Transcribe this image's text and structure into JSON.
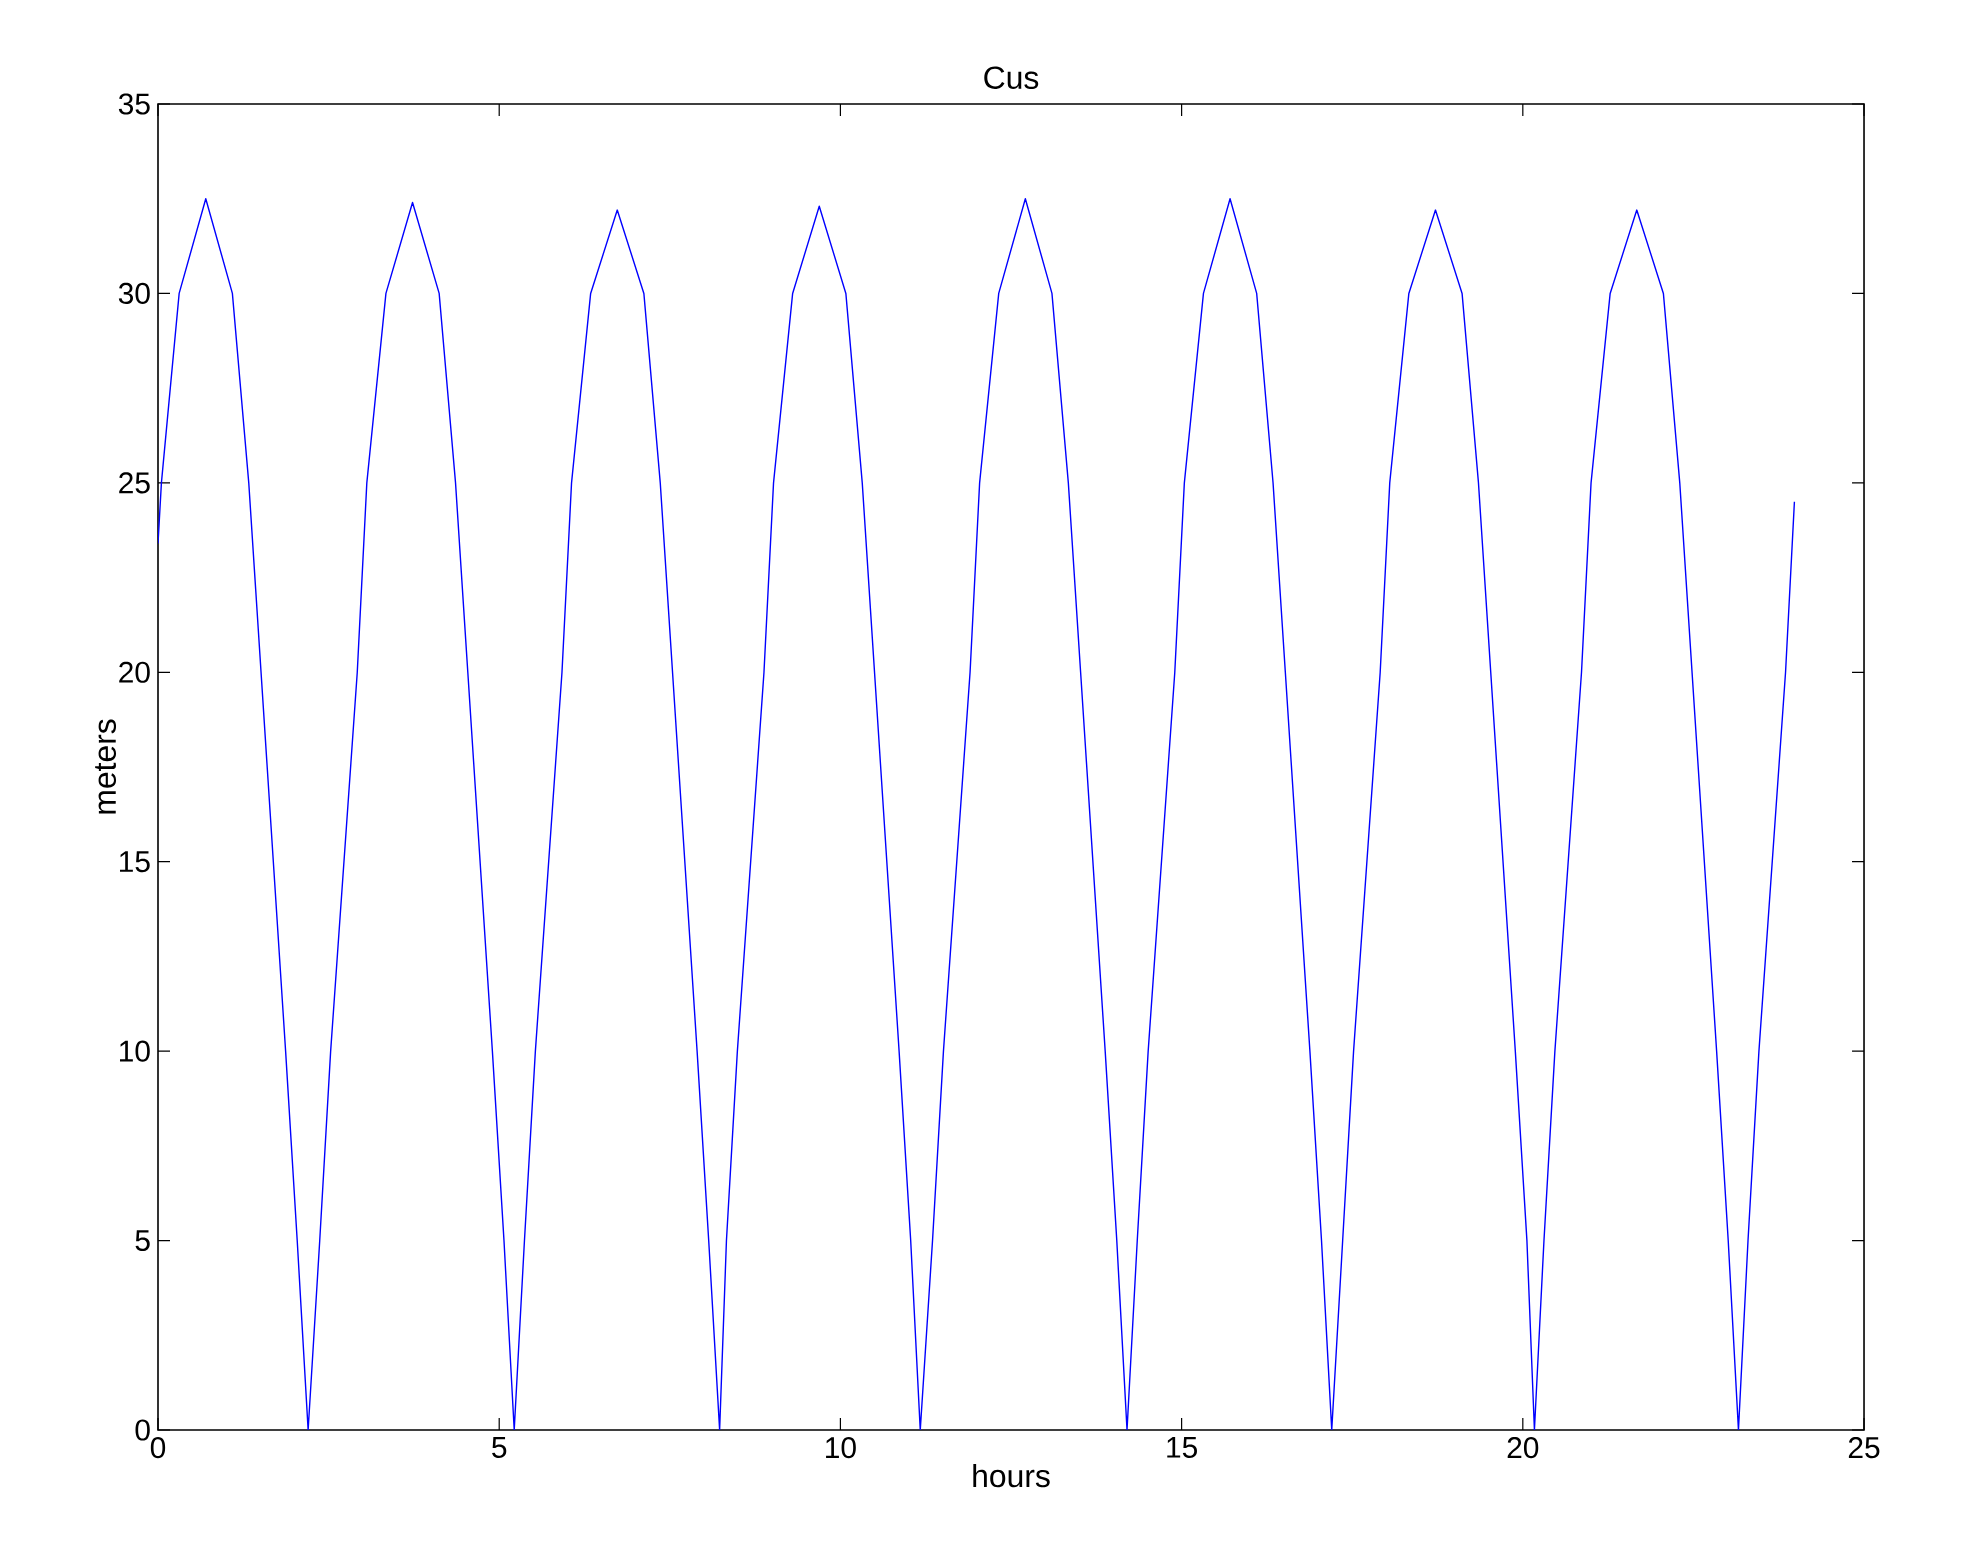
{
  "chart_data": {
    "type": "line",
    "title": "Cus",
    "xlabel": "hours",
    "ylabel": "meters",
    "xlim": [
      0,
      25
    ],
    "ylim": [
      0,
      35
    ],
    "xticks": [
      0,
      5,
      10,
      15,
      20,
      25
    ],
    "yticks": [
      0,
      5,
      10,
      15,
      20,
      25,
      30,
      35
    ],
    "marker": "none",
    "line_style": "solid",
    "series": [
      {
        "color": "#0000ff",
        "x": [
          0,
          0.05,
          0.31,
          0.7,
          1.09,
          1.33,
          1.51,
          1.87,
          2.04,
          2.2,
          2.37,
          2.53,
          2.92,
          3.06,
          3.34,
          3.73,
          4.12,
          4.36,
          4.54,
          4.9,
          5.07,
          5.22,
          5.37,
          5.53,
          5.92,
          6.06,
          6.34,
          6.73,
          7.12,
          7.36,
          7.54,
          7.9,
          8.07,
          8.23,
          8.33,
          8.49,
          8.88,
          9.02,
          9.3,
          9.69,
          10.08,
          10.32,
          10.5,
          10.86,
          11.03,
          11.17,
          11.35,
          11.51,
          11.9,
          12.04,
          12.32,
          12.71,
          13.1,
          13.34,
          13.52,
          13.88,
          14.05,
          14.2,
          14.35,
          14.51,
          14.9,
          15.04,
          15.32,
          15.71,
          16.1,
          16.34,
          16.52,
          16.88,
          17.05,
          17.2,
          17.36,
          17.52,
          17.91,
          18.05,
          18.33,
          18.72,
          19.11,
          19.35,
          19.53,
          19.89,
          20.06,
          20.17,
          20.31,
          20.47,
          20.86,
          21.0,
          21.28,
          21.67,
          22.06,
          22.3,
          22.48,
          22.84,
          23.01,
          23.16,
          23.3,
          23.46,
          23.85,
          23.98
        ],
        "values": [
          23.4,
          25,
          30,
          32.5,
          30,
          25,
          20,
          10,
          5,
          0,
          5,
          10,
          20,
          25,
          30,
          32.4,
          30,
          25,
          20,
          10,
          5,
          0,
          5,
          10,
          20,
          25,
          30,
          32.2,
          30,
          25,
          20,
          10,
          5,
          0,
          5,
          10,
          20,
          25,
          30,
          32.3,
          30,
          25,
          20,
          10,
          5,
          0,
          5,
          10,
          20,
          25,
          30,
          32.5,
          30,
          25,
          20,
          10,
          5,
          0,
          5,
          10,
          20,
          25,
          30,
          32.5,
          30,
          25,
          20,
          10,
          5,
          0,
          5,
          10,
          20,
          25,
          30,
          32.2,
          30,
          25,
          20,
          10,
          5,
          0,
          5,
          10,
          20,
          25,
          30,
          32.2,
          30,
          25,
          20,
          10,
          5,
          0,
          5,
          10,
          20,
          24.5
        ]
      }
    ]
  }
}
